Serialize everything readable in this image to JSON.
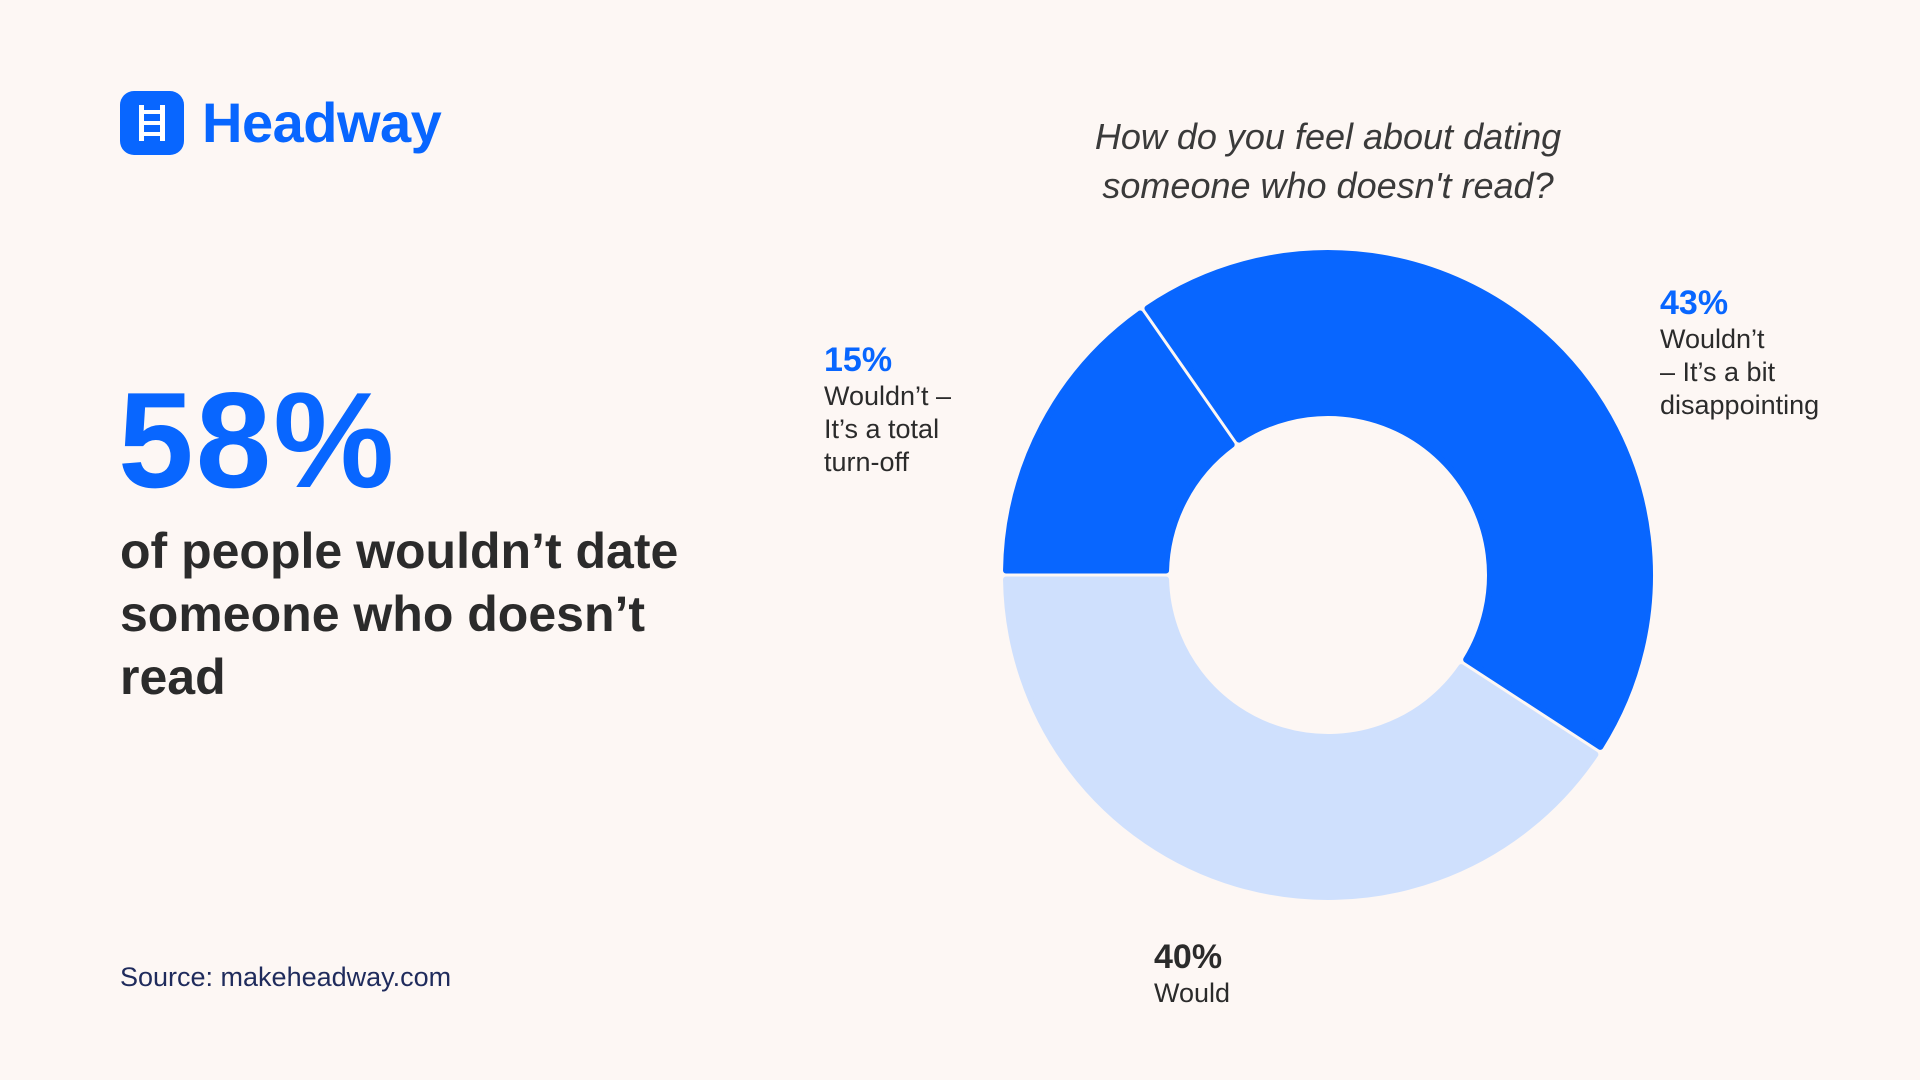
{
  "brand": {
    "name": "Headway",
    "color": "#0866ff"
  },
  "headline": {
    "stat": "58%",
    "text": "of people wouldn’t date someone who doesn’t read"
  },
  "source": "Source: makeheadway.com",
  "chart_data": {
    "type": "pie",
    "style": "donut",
    "title": "How do you feel about dating someone who doesn't read?",
    "categories": [
      "Would",
      "Wouldn’t – It’s a total turn-off",
      "Wouldn’t – It’s a bit disappointing"
    ],
    "values": [
      40,
      15,
      43
    ],
    "labels": [
      {
        "value_label": "40%",
        "text": "Would",
        "color": "#cfe0fd",
        "label_color": "#2b2b2b"
      },
      {
        "value_label": "15%",
        "text": "Wouldn’t –\nIt’s a total\nturn-off",
        "color": "#0866ff",
        "label_color": "#0866ff"
      },
      {
        "value_label": "43%",
        "text": "Wouldn’t\n– It’s a bit\ndisappointing",
        "color": "#0866ff",
        "label_color": "#0866ff"
      }
    ],
    "colors": {
      "primary": "#0866ff",
      "light": "#cfe0fd"
    }
  }
}
